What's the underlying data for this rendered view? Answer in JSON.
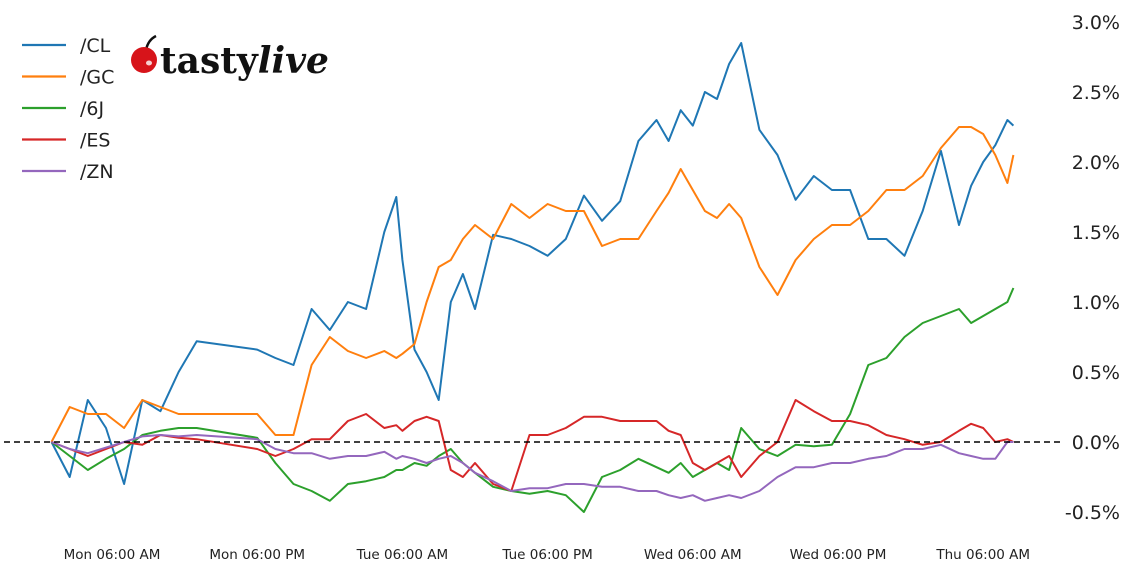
{
  "logo": {
    "text_main": "tasty",
    "text_italic": "live",
    "icon": "cherry-icon",
    "cherry_color": "#d7141a"
  },
  "chart_data": {
    "type": "line",
    "title": "",
    "xlabel": "",
    "ylabel": "",
    "ylim": [
      -0.5,
      3.0
    ],
    "y_axis_position": "right",
    "y_ticks": [
      "3.0%",
      "2.5%",
      "2.0%",
      "1.5%",
      "1.0%",
      "0.5%",
      "0.0%",
      "-0.5%"
    ],
    "y_tick_values": [
      3.0,
      2.5,
      2.0,
      1.5,
      1.0,
      0.5,
      0.0,
      -0.5
    ],
    "x_ticks": [
      "Mon 06:00 AM",
      "Mon 06:00 PM",
      "Tue 06:00 AM",
      "Tue 06:00 PM",
      "Wed 06:00 AM",
      "Wed 06:00 PM",
      "Thu 06:00 AM"
    ],
    "x_tick_values": [
      "Mon 06:00",
      "Mon 18:00",
      "Tue 06:00",
      "Tue 18:00",
      "Wed 06:00",
      "Wed 18:00",
      "Thu 06:00"
    ],
    "grid": false,
    "reference_line": {
      "value": 0.0,
      "style": "dashed",
      "color": "#000000"
    },
    "legend_placement": "top-left",
    "x": [
      "Mon 01:00",
      "Mon 02:30",
      "Mon 04:00",
      "Mon 05:30",
      "Mon 07:00",
      "Mon 08:30",
      "Mon 10:00",
      "Mon 11:30",
      "Mon 13:00",
      "Mon 18:00",
      "Mon 19:30",
      "Mon 21:00",
      "Mon 22:30",
      "Tue 00:00",
      "Tue 01:30",
      "Tue 03:00",
      "Tue 04:30",
      "Tue 05:30",
      "Tue 06:00",
      "Tue 07:00",
      "Tue 08:00",
      "Tue 09:00",
      "Tue 10:00",
      "Tue 11:00",
      "Tue 12:00",
      "Tue 13:30",
      "Tue 15:00",
      "Tue 16:30",
      "Tue 18:00",
      "Tue 19:30",
      "Tue 21:00",
      "Tue 22:30",
      "Wed 00:00",
      "Wed 01:30",
      "Wed 03:00",
      "Wed 04:00",
      "Wed 05:00",
      "Wed 06:00",
      "Wed 07:00",
      "Wed 08:00",
      "Wed 09:00",
      "Wed 10:00",
      "Wed 11:30",
      "Wed 13:00",
      "Wed 14:30",
      "Wed 16:00",
      "Wed 17:30",
      "Wed 19:00",
      "Wed 20:30",
      "Wed 22:00",
      "Wed 23:30",
      "Thu 01:00",
      "Thu 02:30",
      "Thu 04:00",
      "Thu 05:00",
      "Thu 06:00",
      "Thu 07:00",
      "Thu 08:00",
      "Thu 08:30"
    ],
    "series": [
      {
        "name": "/CL",
        "color": "#1f77b4",
        "values": [
          0,
          -0.25,
          0.3,
          0.1,
          -0.3,
          0.3,
          0.22,
          0.5,
          0.72,
          0.66,
          0.6,
          0.55,
          0.95,
          0.8,
          1.0,
          0.95,
          1.5,
          1.75,
          1.3,
          0.66,
          0.5,
          0.3,
          1.0,
          1.2,
          0.95,
          1.48,
          1.45,
          1.4,
          1.33,
          1.45,
          1.76,
          1.58,
          1.72,
          2.15,
          2.3,
          2.15,
          2.37,
          2.26,
          2.5,
          2.45,
          2.7,
          2.85,
          2.23,
          2.05,
          1.73,
          1.9,
          1.8,
          1.8,
          1.45,
          1.45,
          1.33,
          1.65,
          2.08,
          1.55,
          1.83,
          2.0,
          2.12,
          2.3,
          2.26
        ]
      },
      {
        "name": "/GC",
        "color": "#ff7f0e",
        "values": [
          0,
          0.25,
          0.2,
          0.2,
          0.1,
          0.3,
          0.25,
          0.2,
          0.2,
          0.2,
          0.05,
          0.05,
          0.55,
          0.75,
          0.65,
          0.6,
          0.65,
          0.6,
          0.63,
          0.7,
          1.0,
          1.25,
          1.3,
          1.45,
          1.55,
          1.45,
          1.7,
          1.6,
          1.7,
          1.65,
          1.65,
          1.4,
          1.45,
          1.45,
          1.65,
          1.78,
          1.95,
          1.8,
          1.65,
          1.6,
          1.7,
          1.6,
          1.25,
          1.05,
          1.3,
          1.45,
          1.55,
          1.55,
          1.65,
          1.8,
          1.8,
          1.9,
          2.1,
          2.25,
          2.25,
          2.2,
          2.05,
          1.85,
          2.05
        ]
      },
      {
        "name": "/6J",
        "color": "#2ca02c",
        "values": [
          0,
          -0.1,
          -0.2,
          -0.12,
          -0.05,
          0.05,
          0.08,
          0.1,
          0.1,
          0.03,
          -0.15,
          -0.3,
          -0.35,
          -0.42,
          -0.3,
          -0.28,
          -0.25,
          -0.2,
          -0.2,
          -0.15,
          -0.17,
          -0.1,
          -0.05,
          -0.15,
          -0.22,
          -0.32,
          -0.35,
          -0.37,
          -0.35,
          -0.38,
          -0.5,
          -0.25,
          -0.2,
          -0.12,
          -0.18,
          -0.22,
          -0.15,
          -0.25,
          -0.2,
          -0.15,
          -0.2,
          0.1,
          -0.05,
          -0.1,
          -0.02,
          -0.03,
          -0.02,
          0.2,
          0.55,
          0.6,
          0.75,
          0.85,
          0.9,
          0.95,
          0.85,
          0.9,
          0.95,
          1.0,
          1.1
        ]
      },
      {
        "name": "/ES",
        "color": "#d62728",
        "values": [
          0,
          -0.05,
          -0.1,
          -0.05,
          0.0,
          -0.02,
          0.05,
          0.03,
          0.02,
          -0.05,
          -0.1,
          -0.05,
          0.02,
          0.02,
          0.15,
          0.2,
          0.1,
          0.12,
          0.08,
          0.15,
          0.18,
          0.15,
          -0.2,
          -0.25,
          -0.15,
          -0.3,
          -0.35,
          0.05,
          0.05,
          0.1,
          0.18,
          0.18,
          0.15,
          0.15,
          0.15,
          0.08,
          0.05,
          -0.15,
          -0.2,
          -0.15,
          -0.1,
          -0.25,
          -0.1,
          0.0,
          0.3,
          0.22,
          0.15,
          0.15,
          0.12,
          0.05,
          0.02,
          -0.02,
          0.0,
          0.08,
          0.13,
          0.1,
          0.0,
          0.02,
          0.0
        ]
      },
      {
        "name": "/ZN",
        "color": "#9467bd",
        "values": [
          0,
          -0.05,
          -0.08,
          -0.04,
          0.0,
          0.04,
          0.05,
          0.04,
          0.05,
          0.02,
          -0.05,
          -0.08,
          -0.08,
          -0.12,
          -0.1,
          -0.1,
          -0.07,
          -0.12,
          -0.1,
          -0.12,
          -0.15,
          -0.12,
          -0.1,
          -0.15,
          -0.22,
          -0.28,
          -0.35,
          -0.33,
          -0.33,
          -0.3,
          -0.3,
          -0.32,
          -0.32,
          -0.35,
          -0.35,
          -0.38,
          -0.4,
          -0.38,
          -0.42,
          -0.4,
          -0.38,
          -0.4,
          -0.35,
          -0.25,
          -0.18,
          -0.18,
          -0.15,
          -0.15,
          -0.12,
          -0.1,
          -0.05,
          -0.05,
          -0.02,
          -0.08,
          -0.1,
          -0.12,
          -0.12,
          0.0,
          0.0
        ]
      }
    ]
  }
}
